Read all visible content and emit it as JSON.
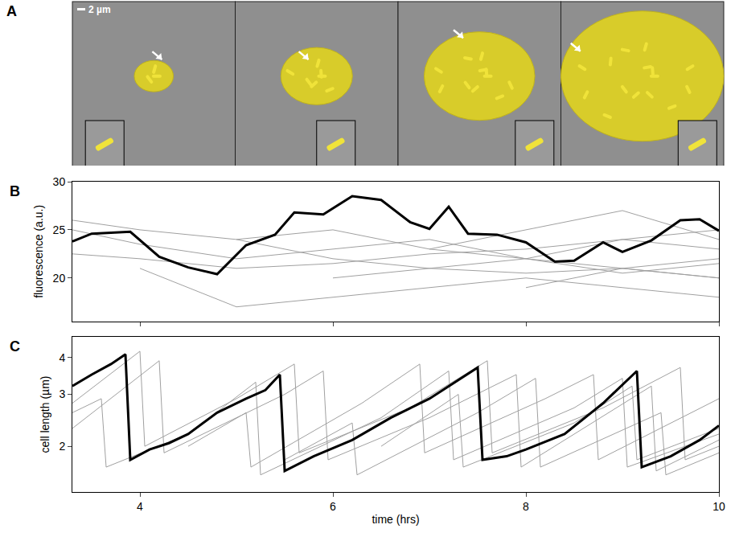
{
  "panel_a": {
    "panel": "A",
    "scale_bar": "2 µm"
  },
  "chart_data": [
    {
      "panel": "B",
      "type": "line",
      "y_label": "fluorescence (a.u.)",
      "xlim": [
        3.3,
        10
      ],
      "xticks": [
        4,
        6,
        8,
        10
      ],
      "ylim": [
        15.5,
        30
      ],
      "yticks": [
        20,
        25,
        30
      ],
      "tick_labels": "y",
      "series": [
        {
          "color": "#a0a0a0",
          "x": [
            3.3,
            4,
            5,
            6,
            7,
            8,
            9,
            10
          ],
          "values": [
            25,
            23.5,
            22,
            23,
            24,
            22,
            21,
            22
          ]
        },
        {
          "color": "#a0a0a0",
          "x": [
            3.3,
            4,
            5,
            6,
            7,
            8,
            9,
            10
          ],
          "values": [
            22.5,
            22,
            21,
            21.5,
            22.5,
            23,
            24,
            23
          ]
        },
        {
          "color": "#a0a0a0",
          "x": [
            3.3,
            4,
            5,
            6,
            7,
            8,
            9,
            10
          ],
          "values": [
            26,
            25,
            24,
            22,
            21,
            20.5,
            21,
            20
          ]
        },
        {
          "color": "#a0a0a0",
          "x": [
            4,
            5,
            6,
            7,
            8,
            9,
            10
          ],
          "values": [
            21,
            17,
            18,
            19,
            20,
            19,
            18
          ]
        },
        {
          "color": "#a0a0a0",
          "x": [
            5,
            6,
            7,
            8,
            9,
            10
          ],
          "values": [
            24,
            25,
            23,
            22,
            24,
            25
          ]
        },
        {
          "color": "#a0a0a0",
          "x": [
            6,
            7,
            8,
            9,
            10
          ],
          "values": [
            20,
            21,
            22,
            20.5,
            21.5
          ]
        },
        {
          "color": "#a0a0a0",
          "x": [
            7,
            8,
            9,
            10
          ],
          "values": [
            23,
            25,
            27,
            24
          ]
        },
        {
          "color": "#a0a0a0",
          "x": [
            8,
            9,
            10
          ],
          "values": [
            19,
            21,
            20
          ]
        },
        {
          "color": "#000000",
          "x": [
            3.3,
            3.5,
            3.9,
            4.2,
            4.5,
            4.8,
            5.1,
            5.4,
            5.6,
            5.9,
            6.2,
            6.5,
            6.8,
            7.0,
            7.2,
            7.4,
            7.7,
            8.0,
            8.3,
            8.5,
            8.8,
            9.0,
            9.3,
            9.6,
            9.8,
            10
          ],
          "values": [
            23.8,
            24.6,
            24.8,
            22.2,
            21.1,
            20.4,
            23.4,
            24.5,
            26.8,
            26.6,
            28.5,
            28.1,
            25.8,
            25.1,
            27.4,
            24.6,
            24.5,
            23.7,
            21.7,
            21.8,
            23.7,
            22.7,
            23.9,
            26.0,
            26.1,
            24.9
          ]
        }
      ]
    },
    {
      "panel": "C",
      "type": "line",
      "x_label": "time (hrs)",
      "y_label": "cell length (µm)",
      "log": "y",
      "xlim": [
        3.3,
        10
      ],
      "xticks": [
        4,
        6,
        8,
        10
      ],
      "ylim": [
        1.4,
        4.7
      ],
      "yticks": [
        2,
        3,
        4
      ],
      "series": [
        {
          "color": "#a0a0a0",
          "x": [
            3.3,
            3.6,
            3.65,
            4.5,
            5.2,
            5.25,
            6.5,
            7.2,
            7.25,
            8.5,
            9.0,
            9.05,
            10
          ],
          "values": [
            2.6,
            2.9,
            1.7,
            2.2,
            3.3,
            1.6,
            2.5,
            3.6,
            1.8,
            2.7,
            3.4,
            1.7,
            2.2
          ]
        },
        {
          "color": "#a0a0a0",
          "x": [
            3.3,
            4.2,
            4.25,
            5.5,
            5.9,
            5.95,
            7.0,
            7.9,
            7.95,
            9.3,
            9.35,
            10
          ],
          "values": [
            2.3,
            3.9,
            1.9,
            3.0,
            3.6,
            1.8,
            2.5,
            3.5,
            1.7,
            3.2,
            1.65,
            2.1
          ]
        },
        {
          "color": "#a0a0a0",
          "x": [
            3.3,
            4.0,
            4.05,
            5.0,
            5.6,
            5.65,
            6.8,
            7.6,
            7.65,
            8.8,
            9.6,
            9.65,
            10
          ],
          "values": [
            2.8,
            4.2,
            2.0,
            2.9,
            3.8,
            1.9,
            2.7,
            3.9,
            1.9,
            2.7,
            3.7,
            1.8,
            2.0
          ]
        },
        {
          "color": "#a0a0a0",
          "x": [
            4.5,
            5.1,
            5.15,
            6.3,
            6.9,
            6.95,
            8.2,
            8.7,
            8.75,
            9.9,
            10
          ],
          "values": [
            2.0,
            2.6,
            1.7,
            2.8,
            3.8,
            1.9,
            2.9,
            3.5,
            1.8,
            2.8,
            2.9
          ]
        },
        {
          "color": "#a0a0a0",
          "x": [
            5.5,
            6.2,
            6.25,
            7.5,
            8.1,
            8.15,
            9.4,
            9.45,
            10
          ],
          "values": [
            1.8,
            2.4,
            1.6,
            2.6,
            3.4,
            1.7,
            2.6,
            1.6,
            1.9
          ]
        },
        {
          "color": "#a0a0a0",
          "x": [
            6.5,
            7.3,
            7.35,
            8.5,
            9.1,
            9.15,
            10
          ],
          "values": [
            2.0,
            3.0,
            1.7,
            2.4,
            3.2,
            1.8,
            2.3
          ]
        },
        {
          "color": "#000000",
          "x": [
            3.3,
            3.5,
            3.7,
            3.85,
            3.9,
            4.1,
            4.3,
            4.5,
            4.8,
            5.1,
            5.3,
            5.45,
            5.5,
            5.8,
            6.2,
            6.6,
            7.0,
            7.5,
            7.55,
            7.8,
            8.0,
            8.4,
            8.8,
            9.15,
            9.2,
            9.5,
            9.8,
            10
          ],
          "values": [
            3.2,
            3.5,
            3.8,
            4.1,
            1.8,
            1.95,
            2.05,
            2.2,
            2.6,
            2.9,
            3.1,
            3.5,
            1.65,
            1.85,
            2.1,
            2.5,
            2.9,
            3.7,
            1.8,
            1.85,
            1.95,
            2.2,
            2.8,
            3.6,
            1.7,
            1.85,
            2.1,
            2.35
          ]
        }
      ]
    }
  ]
}
